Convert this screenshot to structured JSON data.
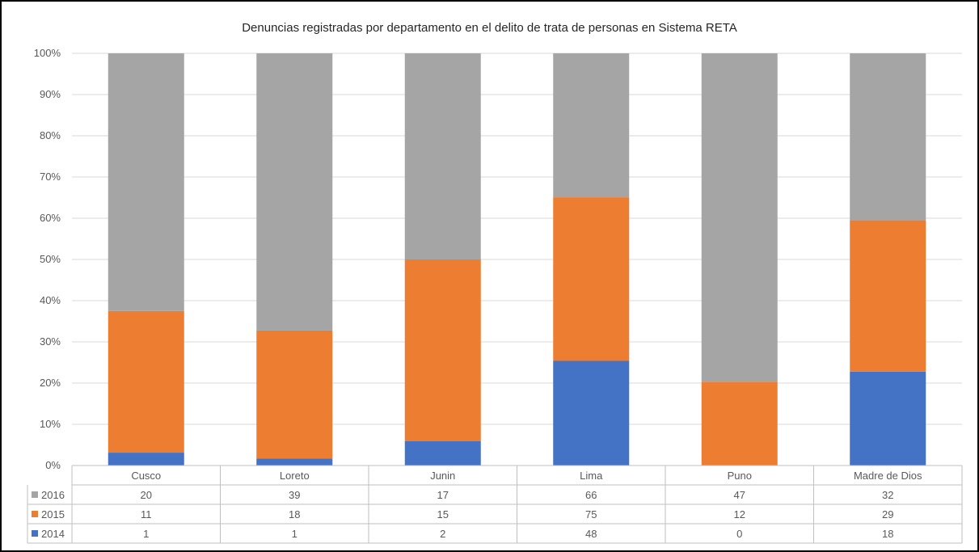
{
  "chart_data": {
    "type": "bar",
    "stacked": "percent",
    "title": "Denuncias registradas por departamento en el delito de trata de personas en Sistema RETA",
    "categories": [
      "Cusco",
      "Loreto",
      "Junin",
      "Lima",
      "Puno",
      "Madre de Dios"
    ],
    "series": [
      {
        "name": "2014",
        "color": "#4472c4",
        "values": [
          1,
          1,
          2,
          48,
          0,
          18
        ]
      },
      {
        "name": "2015",
        "color": "#ed7d31",
        "values": [
          11,
          18,
          15,
          75,
          12,
          29
        ]
      },
      {
        "name": "2016",
        "color": "#a5a5a5",
        "values": [
          20,
          39,
          17,
          66,
          47,
          32
        ]
      }
    ],
    "table_order": [
      "2016",
      "2015",
      "2014"
    ],
    "y_ticks": [
      "0%",
      "10%",
      "20%",
      "30%",
      "40%",
      "50%",
      "60%",
      "70%",
      "80%",
      "90%",
      "100%"
    ],
    "ylim": [
      0,
      1
    ],
    "grid": true,
    "legend": "data-table"
  }
}
